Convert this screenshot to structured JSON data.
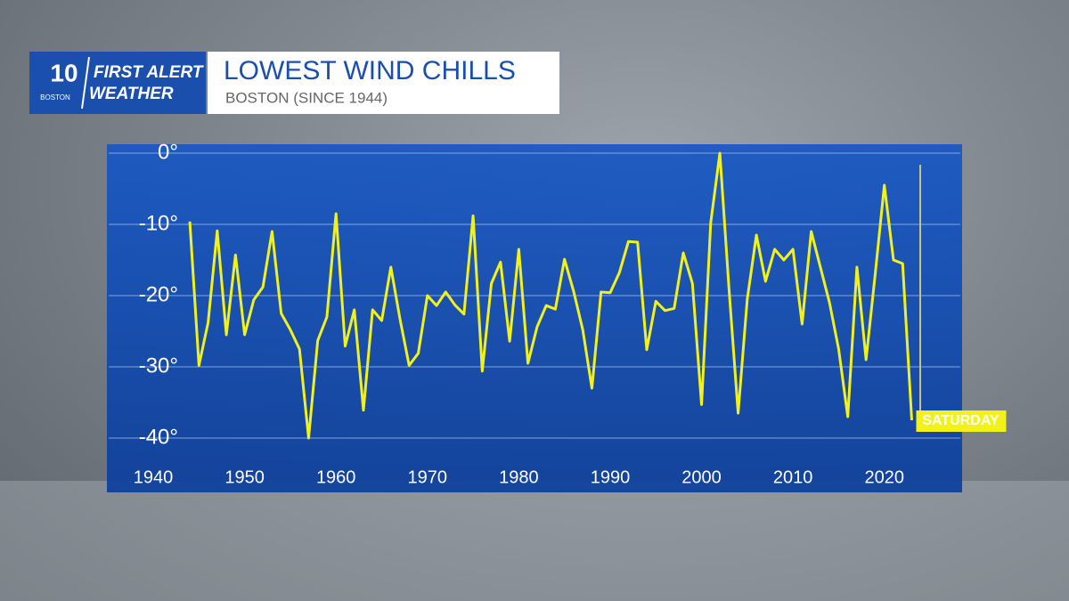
{
  "logo": {
    "channel": "10",
    "station": "BOSTON",
    "line1": "FIRST ALERT",
    "line2": "WEATHER"
  },
  "chart_data": {
    "type": "line",
    "title": "LOWEST WIND CHILLS",
    "subtitle": "BOSTON (SINCE 1944)",
    "x": [
      1944,
      1945,
      1946,
      1947,
      1948,
      1949,
      1950,
      1951,
      1952,
      1953,
      1954,
      1955,
      1956,
      1957,
      1958,
      1959,
      1960,
      1961,
      1962,
      1963,
      1964,
      1965,
      1966,
      1967,
      1968,
      1969,
      1970,
      1971,
      1972,
      1973,
      1974,
      1975,
      1976,
      1977,
      1978,
      1979,
      1980,
      1981,
      1982,
      1983,
      1984,
      1985,
      1986,
      1987,
      1988,
      1989,
      1990,
      1991,
      1992,
      1993,
      1994,
      1995,
      1996,
      1997,
      1998,
      1999,
      2000,
      2001,
      2002,
      2003,
      2004,
      2005,
      2006,
      2007,
      2008,
      2009,
      2010,
      2011,
      2012,
      2013,
      2014,
      2015,
      2016,
      2017,
      2018,
      2019,
      2020,
      2021,
      2022,
      2023
    ],
    "series": [
      {
        "color": "#f2f21a",
        "values": [
          -9.6,
          -29.8,
          -23.8,
          -10.9,
          -25.5,
          -14.3,
          -25.5,
          -20.6,
          -18.8,
          -11,
          -22.5,
          -24.8,
          -27.5,
          -40,
          -26.3,
          -23,
          -8.5,
          -27.1,
          -22,
          -36.1,
          -22,
          -23.5,
          -16,
          -23.3,
          -29.8,
          -28.1,
          -20,
          -21.4,
          -19.5,
          -21.3,
          -22.6,
          -8.8,
          -30.6,
          -18.3,
          -15.3,
          -26.4,
          -13.5,
          -29.5,
          -24.4,
          -21.4,
          -21.9,
          -14.9,
          -19.4,
          -24.8,
          -33,
          -19.5,
          -19.6,
          -16.8,
          -12.4,
          -12.5,
          -27.6,
          -20.8,
          -22.1,
          -21.8,
          -14,
          -18.3,
          -35.3,
          -9.8,
          0,
          -19,
          -36.5,
          -20.5,
          -11.5,
          -18,
          -13.5,
          -15,
          -13.5,
          -24,
          -11,
          -16,
          -21,
          -27.5,
          -37,
          -16,
          -29,
          -17,
          -4.5,
          -15,
          -15.5,
          -37.5
        ]
      }
    ],
    "annotation": "SATURDAY",
    "xlim": [
      1936,
      2025
    ],
    "xticks": [
      1940,
      1950,
      1960,
      1970,
      1980,
      1990,
      2000,
      2010,
      2020
    ],
    "ylim": [
      -40,
      0
    ],
    "yticks": [
      {
        "value": 0,
        "label": "0°"
      },
      {
        "value": -10,
        "label": "-10°"
      },
      {
        "value": -20,
        "label": "-20°"
      },
      {
        "value": -30,
        "label": "-30°"
      },
      {
        "value": -40,
        "label": "-40°"
      }
    ],
    "grid": true
  }
}
